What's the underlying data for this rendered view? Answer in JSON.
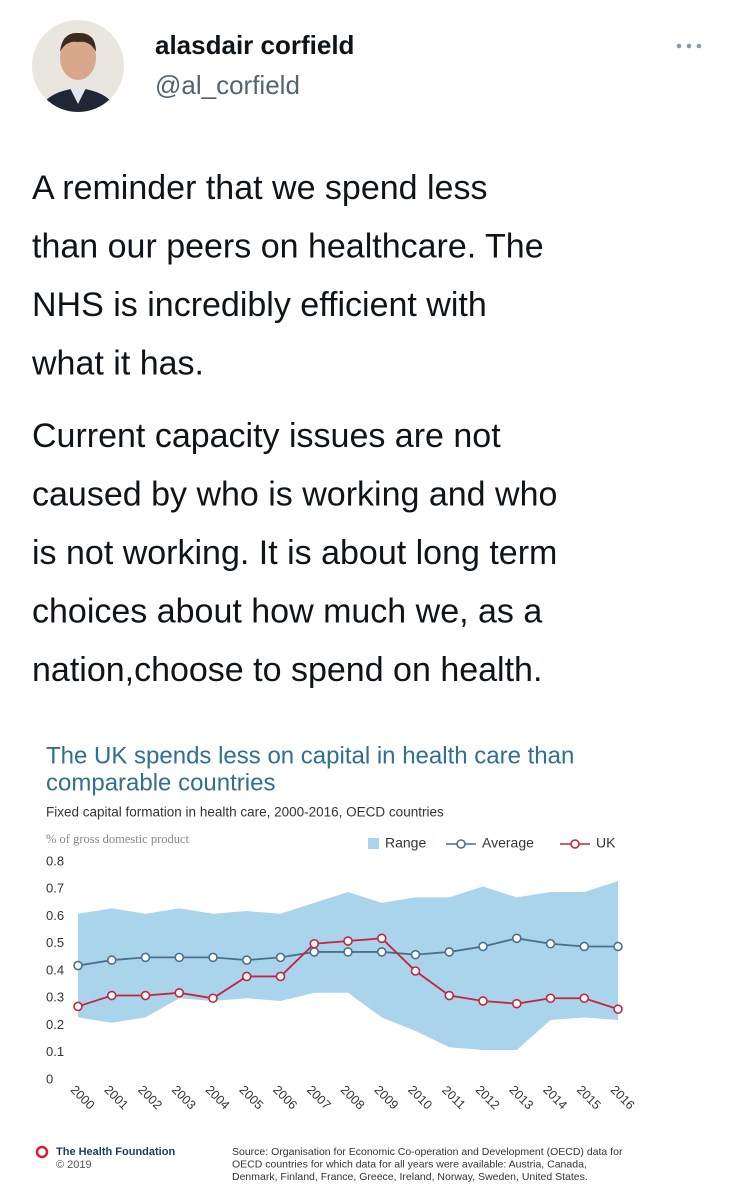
{
  "user": {
    "name": "alasdair corfield",
    "handle": "@al_corfield"
  },
  "tweet": {
    "paragraphs": [
      [
        "A reminder that we spend less",
        "than our peers on healthcare. The",
        "NHS is incredibly efficient with",
        "what it has."
      ],
      [
        "Current capacity issues are not",
        "caused by who is working and who",
        "is not working. It is about long term",
        "choices about how much we, as a",
        "nation,choose to spend on health."
      ]
    ]
  },
  "chart_data": {
    "type": "line",
    "title": [
      "The UK spends less on capital in health care than",
      "comparable countries"
    ],
    "subtitle": "Fixed capital formation in health care, 2000-2016, OECD countries",
    "y_label": "% of gross domestic product",
    "categories": [
      "2000",
      "2001",
      "2002",
      "2003",
      "2004",
      "2005",
      "2006",
      "2007",
      "2008",
      "2009",
      "2010",
      "2011",
      "2012",
      "2013",
      "2014",
      "2015",
      "2016"
    ],
    "series": [
      {
        "name": "Range",
        "color": "#a9d4ec",
        "low": [
          0.23,
          0.21,
          0.23,
          0.3,
          0.29,
          0.3,
          0.29,
          0.32,
          0.32,
          0.23,
          0.18,
          0.12,
          0.11,
          0.11,
          0.22,
          0.23,
          0.22
        ],
        "high": [
          0.61,
          0.63,
          0.61,
          0.63,
          0.61,
          0.62,
          0.61,
          0.65,
          0.69,
          0.65,
          0.67,
          0.67,
          0.71,
          0.67,
          0.69,
          0.69,
          0.73
        ]
      },
      {
        "name": "Average",
        "color": "#4a6f8a",
        "values": [
          0.42,
          0.44,
          0.45,
          0.45,
          0.45,
          0.44,
          0.45,
          0.47,
          0.47,
          0.47,
          0.46,
          0.47,
          0.49,
          0.52,
          0.5,
          0.49,
          0.49
        ]
      },
      {
        "name": "UK",
        "color": "#c4253c",
        "values": [
          0.27,
          0.31,
          0.31,
          0.32,
          0.3,
          0.38,
          0.38,
          0.5,
          0.51,
          0.52,
          0.4,
          0.31,
          0.29,
          0.28,
          0.3,
          0.3,
          0.26
        ]
      }
    ],
    "ylim": [
      0,
      0.8
    ],
    "yticks": [
      0,
      0.1,
      0.2,
      0.3,
      0.4,
      0.5,
      0.6,
      0.7,
      0.8
    ],
    "grid": false,
    "legend": "top-right",
    "footer": {
      "brand": "The Health Foundation",
      "copyright": "© 2019",
      "source": [
        "Source: Organisation for Economic Co-operation and Development (OECD) data for",
        "OECD countries for which data for all years were available: Austria, Canada,",
        "Denmark, Finland, France, Greece, Ireland, Norway, Sweden, United States."
      ]
    }
  }
}
